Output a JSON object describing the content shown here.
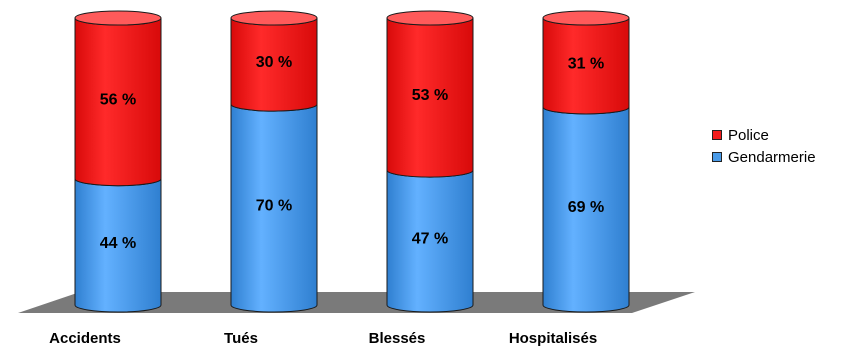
{
  "chart_data": {
    "type": "bar",
    "stacked": true,
    "percent": true,
    "categories": [
      "Accidents",
      "Tués",
      "Blessés",
      "Hospitalisés"
    ],
    "series": [
      {
        "name": "Gendarmerie",
        "values": [
          44,
          70,
          47,
          69
        ],
        "labels": [
          "44 %",
          "70 %",
          "47 %",
          "69 %"
        ],
        "color": "#4a9be8"
      },
      {
        "name": "Police",
        "values": [
          56,
          30,
          53,
          31
        ],
        "labels": [
          "56 %",
          "30 %",
          "53 %",
          "31 %"
        ],
        "color": "#f21c1c"
      }
    ],
    "ylim": [
      0,
      100
    ],
    "legend_position": "right",
    "legend": [
      "Police",
      "Gendarmerie"
    ],
    "grid": false
  }
}
